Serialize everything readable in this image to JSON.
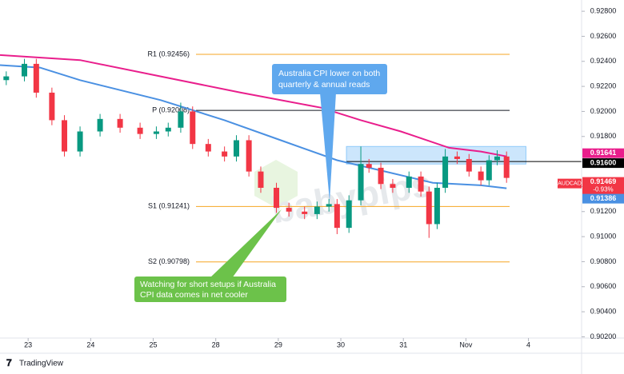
{
  "chart_data": {
    "type": "candlestick",
    "up_color": "#089981",
    "down_color": "#f23645",
    "x": [
      -0.35,
      -0.06,
      0.13,
      0.38,
      0.58,
      0.83,
      1.15,
      1.47,
      1.79,
      2.05,
      2.24,
      2.44,
      2.63,
      2.88,
      3.14,
      3.33,
      3.53,
      3.72,
      3.97,
      4.17,
      4.42,
      4.62,
      4.81,
      4.94,
      5.13,
      5.32,
      5.45,
      5.64,
      5.83,
      6.09,
      6.28,
      6.41,
      6.54,
      6.67,
      6.86,
      7.05,
      7.24,
      7.37,
      7.5,
      7.65
    ],
    "open": [
      0.9225,
      0.9228,
      0.9238,
      0.9215,
      0.9193,
      0.9168,
      0.9184,
      0.9194,
      0.9187,
      0.9182,
      0.9184,
      0.9187,
      0.92,
      0.9174,
      0.9168,
      0.9164,
      0.9177,
      0.9152,
      0.9139,
      0.9123,
      0.912,
      0.9118,
      0.9124,
      0.9126,
      0.9107,
      0.9129,
      0.9158,
      0.9155,
      0.9142,
      0.9139,
      0.9148,
      0.9136,
      0.911,
      0.9139,
      0.9164,
      0.9162,
      0.9152,
      0.9145,
      0.9161,
      0.9164
    ],
    "high": [
      0.9232,
      0.9242,
      0.9242,
      0.9219,
      0.9197,
      0.9188,
      0.9198,
      0.9198,
      0.9191,
      0.9188,
      0.9191,
      0.9207,
      0.9204,
      0.9178,
      0.9172,
      0.9181,
      0.9181,
      0.9156,
      0.9143,
      0.9127,
      0.9124,
      0.9128,
      0.913,
      0.913,
      0.9133,
      0.9172,
      0.9162,
      0.9159,
      0.9146,
      0.9152,
      0.9152,
      0.914,
      0.9143,
      0.917,
      0.9168,
      0.9166,
      0.9156,
      0.9165,
      0.9169,
      0.9168
    ],
    "low": [
      0.9221,
      0.9224,
      0.9211,
      0.9189,
      0.9164,
      0.9164,
      0.918,
      0.9183,
      0.9178,
      0.9178,
      0.918,
      0.9183,
      0.917,
      0.9164,
      0.916,
      0.916,
      0.9148,
      0.9135,
      0.9119,
      0.9116,
      0.9114,
      0.9114,
      0.912,
      0.9102,
      0.9103,
      0.9125,
      0.9151,
      0.9138,
      0.9135,
      0.9135,
      0.9132,
      0.9099,
      0.9106,
      0.9135,
      0.9158,
      0.9148,
      0.9141,
      0.9141,
      0.9157,
      0.9143
    ],
    "close": [
      0.9228,
      0.9238,
      0.9215,
      0.9193,
      0.9168,
      0.9184,
      0.9194,
      0.9187,
      0.9182,
      0.9184,
      0.9187,
      0.92,
      0.9174,
      0.9168,
      0.9164,
      0.9177,
      0.9152,
      0.9139,
      0.9123,
      0.912,
      0.9118,
      0.9124,
      0.9126,
      0.9107,
      0.9129,
      0.9158,
      0.9155,
      0.9142,
      0.9139,
      0.9148,
      0.9136,
      0.911,
      0.9139,
      0.9164,
      0.9162,
      0.9152,
      0.9145,
      0.9161,
      0.9164,
      0.91469
    ],
    "overlays": [
      {
        "color": "#e91e8c",
        "x": [
          -0.45,
          0.83,
          2.12,
          3.4,
          4.68,
          5.32,
          5.96,
          6.73,
          7.24,
          7.65
        ],
        "values": [
          0.9245,
          0.9241,
          0.9228,
          0.9215,
          0.9203,
          0.9193,
          0.9184,
          0.9171,
          0.9168,
          0.91641
        ]
      },
      {
        "color": "#4a90e2",
        "x": [
          -0.45,
          0.19,
          0.83,
          2.12,
          3.14,
          4.04,
          4.94,
          5.71,
          6.47,
          7.24,
          7.65
        ],
        "values": [
          0.9237,
          0.9235,
          0.9225,
          0.9209,
          0.9193,
          0.9177,
          0.9161,
          0.9152,
          0.9143,
          0.9141,
          0.91386
        ]
      }
    ],
    "levels": [
      {
        "label": "R1 (0.92456)",
        "value": 0.92456,
        "color": "#f5a623"
      },
      {
        "label": "P (0.92008)",
        "value": 0.92008,
        "color": "#131722"
      },
      {
        "label": "S1 (0.91241)",
        "value": 0.91241,
        "color": "#f5a623"
      },
      {
        "label": "S2 (0.90798)",
        "value": 0.90798,
        "color": "#f5a623"
      }
    ],
    "zone": {
      "xlim": [
        5.09,
        7.96
      ],
      "ylim": [
        0.9158,
        0.9172
      ],
      "color": "#bbdefb"
    },
    "hline": {
      "value": 0.916,
      "label": "0.91600",
      "color": "#000000"
    },
    "badges": [
      {
        "value": 0.91641,
        "label": "0.91641",
        "color": "#e91e8c"
      },
      {
        "value": 0.91386,
        "label": "0.91386",
        "color": "#4a90e2"
      }
    ],
    "symbol": {
      "name": "AUDCAD",
      "value": 0.91469,
      "label": "0.91469",
      "change": "-0.93%",
      "color": "#f23645"
    },
    "annotations": [
      "Australia CPI lower on both",
      "quarterly & annual reads",
      "Watching for short setups if Australia",
      "CPI data comes in net cooler"
    ],
    "watermark": "babypips",
    "brand": "TradingView",
    "xlim": [
      -0.45,
      8.85
    ],
    "xticks": [
      {
        "value": 0,
        "label": "23"
      },
      {
        "value": 1,
        "label": "24"
      },
      {
        "value": 2,
        "label": "25"
      },
      {
        "value": 3,
        "label": "28"
      },
      {
        "value": 4,
        "label": "29"
      },
      {
        "value": 5,
        "label": "30"
      },
      {
        "value": 6,
        "label": "31"
      },
      {
        "value": 7,
        "label": "Nov"
      },
      {
        "value": 8,
        "label": "4"
      }
    ],
    "ylim": [
      0.9019,
      0.9289
    ],
    "yticks": [
      {
        "value": 0.928,
        "label": "0.92800"
      },
      {
        "value": 0.926,
        "label": "0.92600"
      },
      {
        "value": 0.924,
        "label": "0.92400"
      },
      {
        "value": 0.922,
        "label": "0.92200"
      },
      {
        "value": 0.92,
        "label": "0.92000"
      },
      {
        "value": 0.918,
        "label": "0.91800"
      },
      {
        "value": 0.916,
        "label": "0.91600"
      },
      {
        "value": 0.914,
        "label": "0.91400"
      },
      {
        "value": 0.912,
        "label": "0.91200"
      },
      {
        "value": 0.91,
        "label": "0.91000"
      },
      {
        "value": 0.908,
        "label": "0.90800"
      },
      {
        "value": 0.906,
        "label": "0.90600"
      },
      {
        "value": 0.904,
        "label": "0.90400"
      },
      {
        "value": 0.902,
        "label": "0.90200"
      }
    ]
  }
}
